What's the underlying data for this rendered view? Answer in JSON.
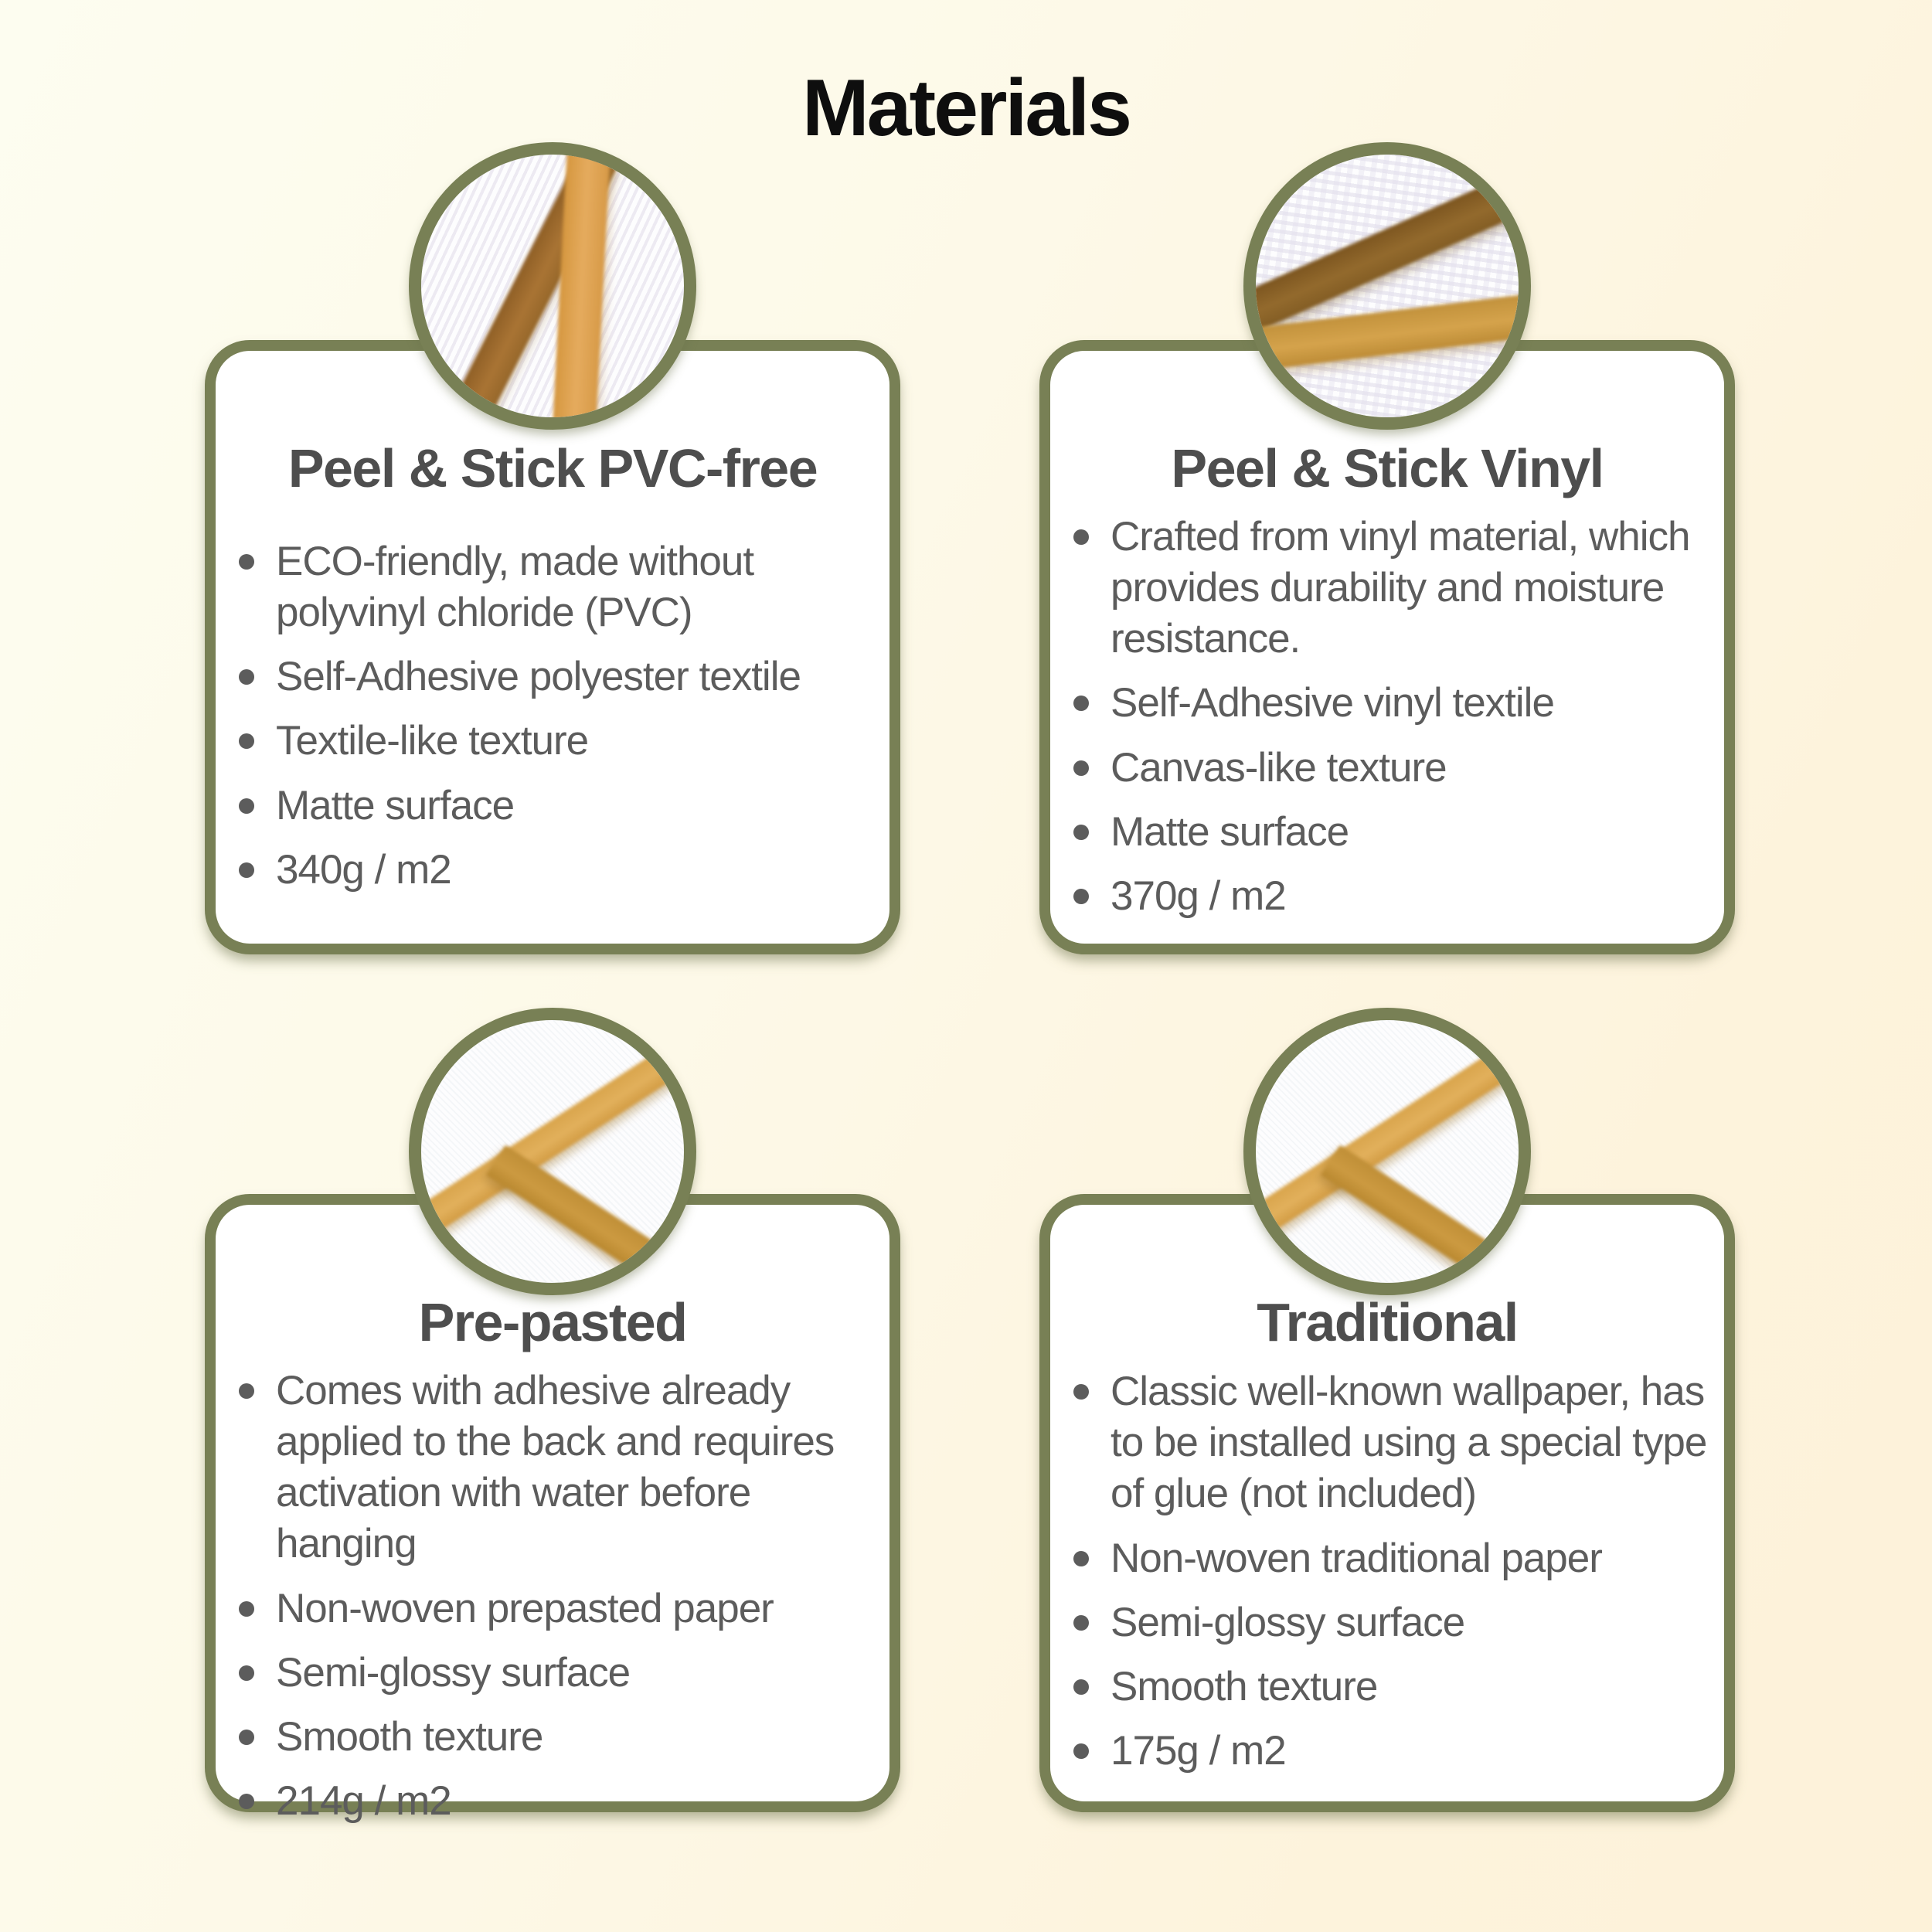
{
  "page": {
    "title": "Materials"
  },
  "colors": {
    "background_cream": "#fdfdf0",
    "background_peach": "#fdf2d9",
    "card_border_olive": "#788055",
    "card_background": "#ffffff",
    "heading_text": "#0e0e0e",
    "card_title_text": "#4e4e4e",
    "body_text": "#5c5c5c",
    "stripe_dark_brown": "#96672a",
    "stripe_tan": "#e5ab5e",
    "stripe_gold": "#d9a54c"
  },
  "cards": [
    {
      "title": "Peel & Stick PVC-free",
      "swatch": "textile-like white wallpaper sample with two brown diagonal stripes",
      "bullets": [
        "ECO-friendly, made without polyvinyl chloride (PVC)",
        "Self-Adhesive polyester textile",
        "Textile-like texture",
        "Matte surface",
        "340g / m2"
      ]
    },
    {
      "title": "Peel & Stick Vinyl",
      "swatch": "canvas-like white wallpaper sample with dark brown and gold stripes",
      "bullets": [
        "Crafted from vinyl material, which provides durability and moisture resistance.",
        "Self-Adhesive vinyl textile",
        "Canvas-like texture",
        "Matte surface",
        "370g / m2"
      ]
    },
    {
      "title": "Pre-pasted",
      "swatch": "smooth white wallpaper sample with thin gold crossing stripes",
      "bullets": [
        "Comes with adhesive already applied to the back and requires activation with water before hanging",
        "Non-woven prepasted paper",
        "Semi-glossy surface",
        "Smooth texture",
        "214g / m2"
      ]
    },
    {
      "title": "Traditional",
      "swatch": "smooth white wallpaper sample with thin gold crossing stripes",
      "bullets": [
        "Classic well-known wallpaper, has to be installed using a special type of glue (not included)",
        "Non-woven traditional paper",
        "Semi-glossy surface",
        "Smooth texture",
        "175g / m2"
      ]
    }
  ]
}
